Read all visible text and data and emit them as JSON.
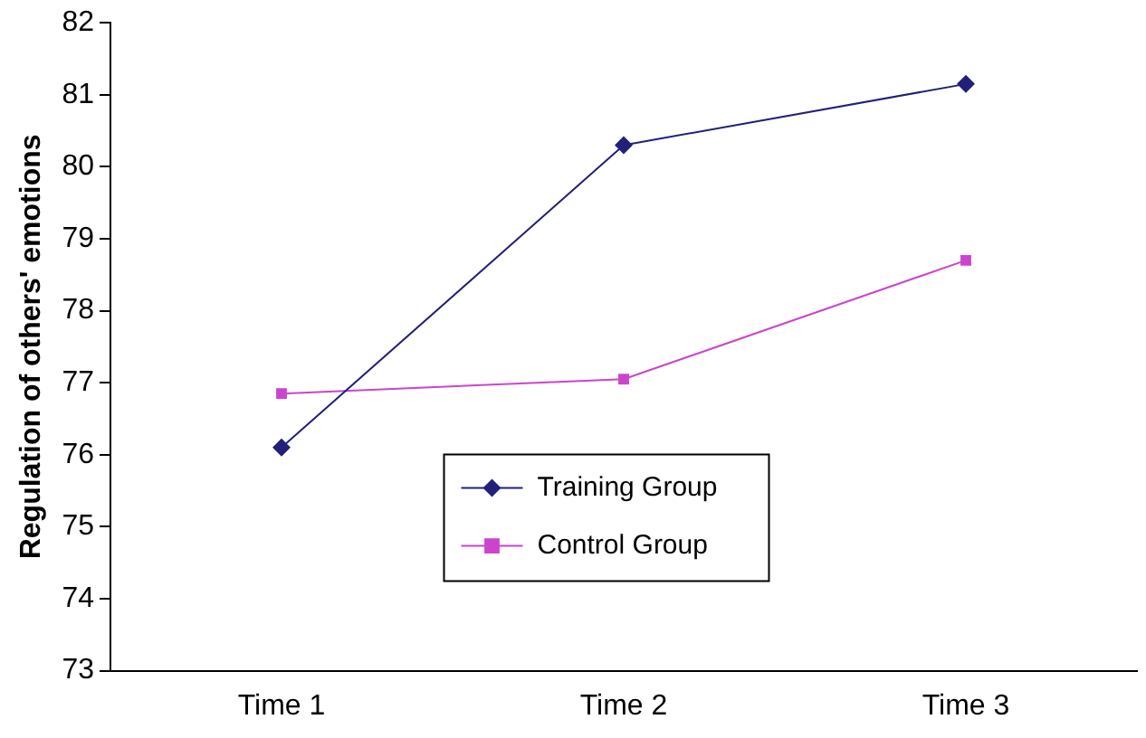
{
  "chart_data": {
    "type": "line",
    "ylabel": "Regulation of others' emotions",
    "categories": [
      "Time 1",
      "Time 2",
      "Time 3"
    ],
    "series": [
      {
        "name": "Training Group",
        "color": "#22207a",
        "marker": "diamond",
        "values": [
          76.1,
          80.3,
          81.15
        ]
      },
      {
        "name": "Control Group",
        "color": "#cc44cc",
        "marker": "square",
        "values": [
          76.85,
          77.05,
          78.7
        ]
      }
    ],
    "ylim": [
      73,
      82
    ],
    "yticks": [
      73,
      74,
      75,
      76,
      77,
      78,
      79,
      80,
      81,
      82
    ],
    "grid": false,
    "legend": "bottom",
    "line_style": "solid"
  }
}
